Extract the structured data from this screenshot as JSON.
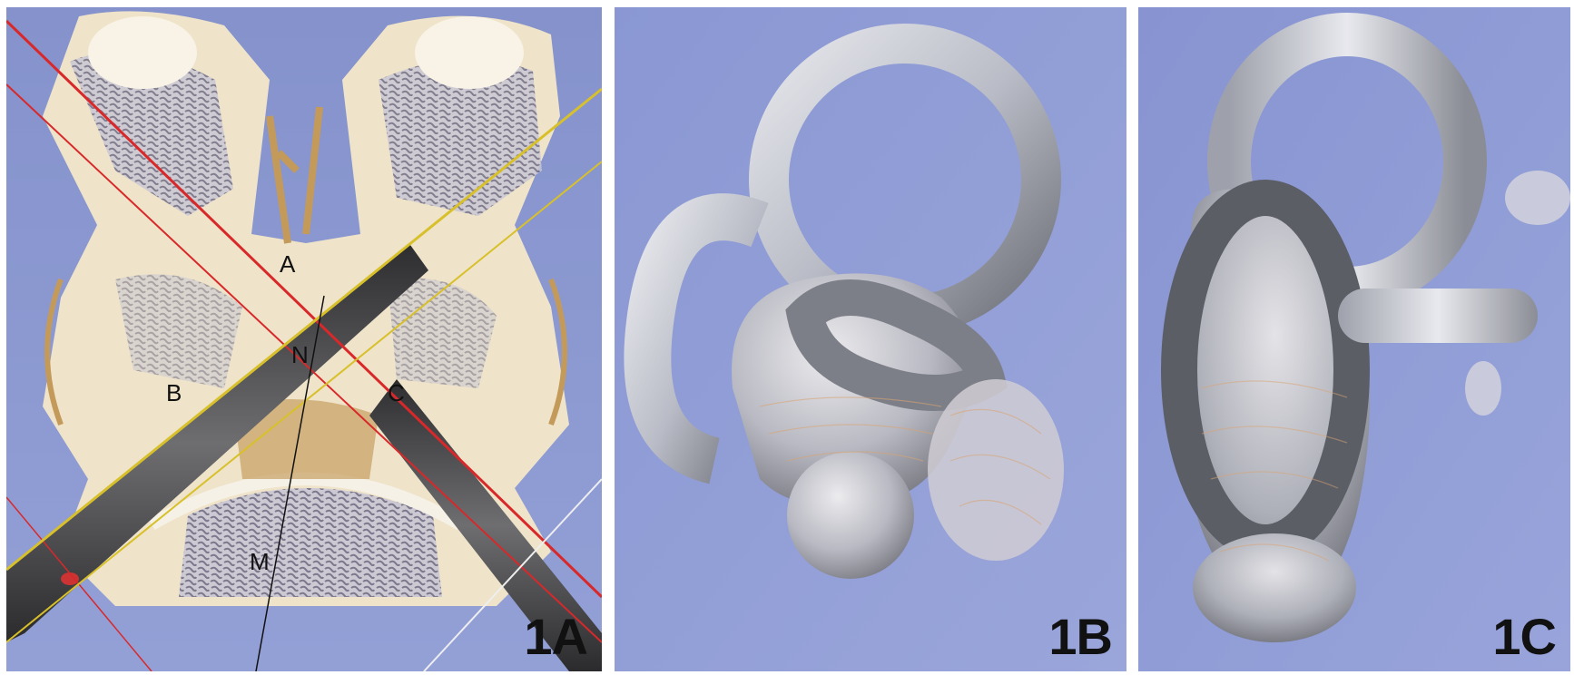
{
  "panels": [
    {
      "label": "1A",
      "annotations": [
        "A",
        "B",
        "C",
        "N",
        "M"
      ]
    },
    {
      "label": "1B"
    },
    {
      "label": "1C"
    }
  ],
  "colors": {
    "background_blue": "#8c98cf",
    "bone": "#f2ead6",
    "bone_shadow": "#b9a47e",
    "cut_plane": "#3d3d3f",
    "red_line": "#d8282a",
    "yellow_line": "#d8c02a",
    "labyrinth": "#c9ccd4"
  }
}
